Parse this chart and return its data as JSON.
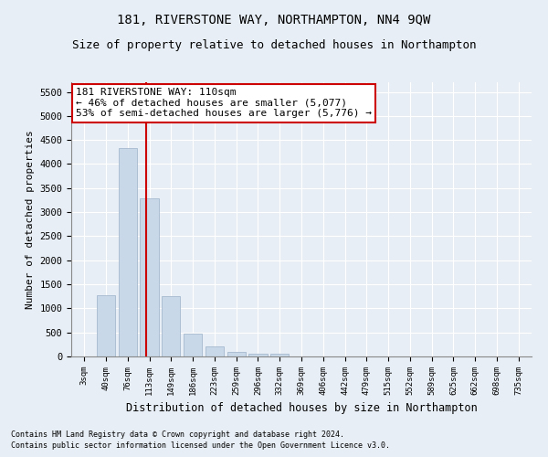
{
  "title": "181, RIVERSTONE WAY, NORTHAMPTON, NN4 9QW",
  "subtitle": "Size of property relative to detached houses in Northampton",
  "xlabel": "Distribution of detached houses by size in Northampton",
  "ylabel": "Number of detached properties",
  "footer_line1": "Contains HM Land Registry data © Crown copyright and database right 2024.",
  "footer_line2": "Contains public sector information licensed under the Open Government Licence v3.0.",
  "annotation_title": "181 RIVERSTONE WAY: 110sqm",
  "annotation_line2": "← 46% of detached houses are smaller (5,077)",
  "annotation_line3": "53% of semi-detached houses are larger (5,776) →",
  "bar_color": "#c8d8e8",
  "bar_edge_color": "#9ab0c8",
  "vline_color": "#cc0000",
  "vline_x": 2.85,
  "categories": [
    "3sqm",
    "40sqm",
    "76sqm",
    "113sqm",
    "149sqm",
    "186sqm",
    "223sqm",
    "259sqm",
    "296sqm",
    "332sqm",
    "369sqm",
    "406sqm",
    "442sqm",
    "479sqm",
    "515sqm",
    "552sqm",
    "589sqm",
    "625sqm",
    "662sqm",
    "698sqm",
    "735sqm"
  ],
  "bar_values": [
    0,
    1270,
    4340,
    3290,
    1260,
    480,
    215,
    95,
    60,
    50,
    0,
    0,
    0,
    0,
    0,
    0,
    0,
    0,
    0,
    0,
    0
  ],
  "ylim": [
    0,
    5700
  ],
  "yticks": [
    0,
    500,
    1000,
    1500,
    2000,
    2500,
    3000,
    3500,
    4000,
    4500,
    5000,
    5500
  ],
  "bg_color": "#e8eef5",
  "plot_bg_color": "#e8eef5",
  "grid_color": "#ffffff",
  "title_fontsize": 10,
  "subtitle_fontsize": 9,
  "annotation_box_color": "#ffffff",
  "annotation_box_edge": "#cc0000",
  "annotation_fontsize": 8
}
